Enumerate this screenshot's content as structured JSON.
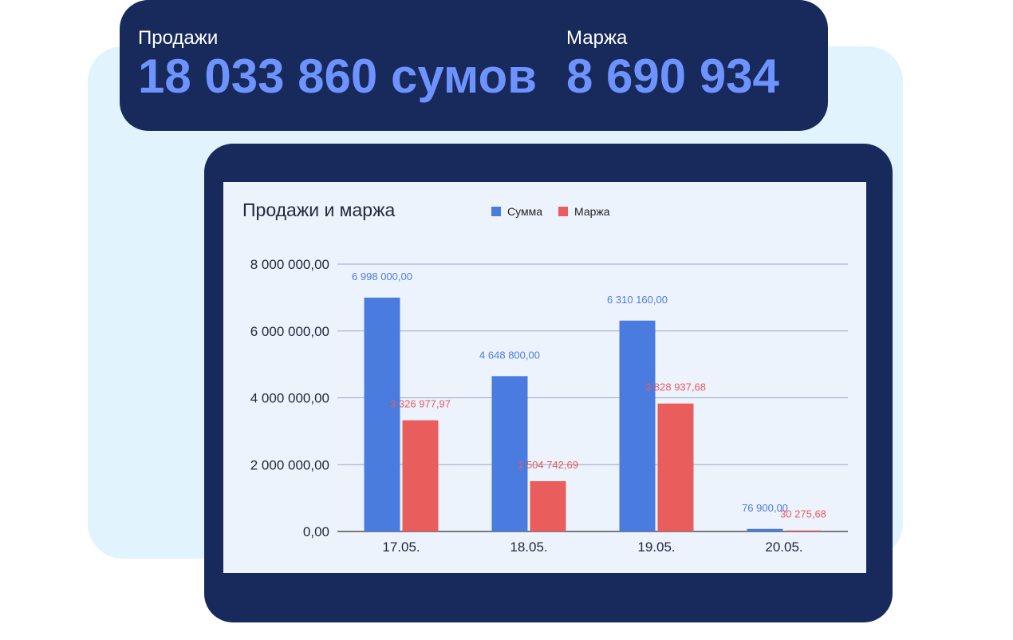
{
  "stats": {
    "sales": {
      "label": "Продажи",
      "value": "18 033 860 сумов"
    },
    "margin": {
      "label": "Маржа",
      "value": "8 690 934"
    }
  },
  "colors": {
    "sum": "#4a7ce0",
    "margin": "#ea5d5d"
  },
  "chart_data": {
    "type": "bar",
    "title": "Продажи и маржа",
    "categories": [
      "17.05.",
      "18.05.",
      "19.05.",
      "20.05."
    ],
    "series": [
      {
        "name": "Сумма",
        "values": [
          6998000,
          4648800,
          6310160,
          76900
        ],
        "labels": [
          "6 998 000,00",
          "4 648 800,00",
          "6 310 160,00",
          "76 900,00"
        ]
      },
      {
        "name": "Маржа",
        "values": [
          3326977.97,
          1504742.69,
          3828937.68,
          30275.68
        ],
        "labels": [
          "3 326 977,97",
          "1 504 742,69",
          "3 828 937,68",
          "30 275,68"
        ]
      }
    ],
    "yticks": [
      "0,00",
      "2 000 000,00",
      "4 000 000,00",
      "6 000 000,00",
      "8 000 000,00"
    ],
    "ylim": [
      0,
      8000000
    ],
    "xlabel": "",
    "ylabel": "",
    "grid": true,
    "legend": "top"
  }
}
